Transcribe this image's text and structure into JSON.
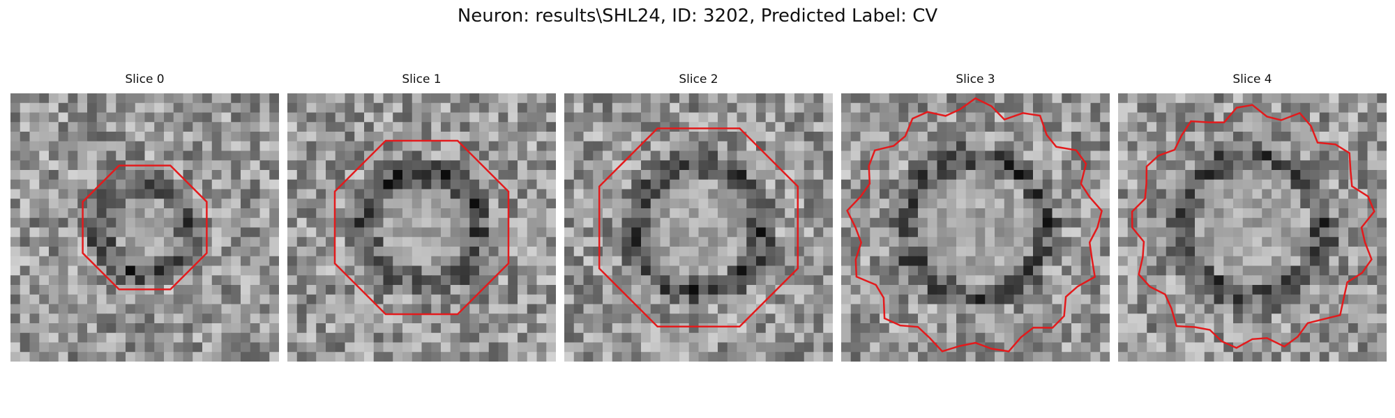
{
  "figure": {
    "title": "Neuron: results\\SHL24, ID: 3202, Predicted Label: CV"
  },
  "slices": [
    {
      "title": "Slice 0",
      "seed": 11,
      "ring_radius": 0.33,
      "contour_radius": 0.25,
      "contour_sides": 8,
      "jagged": false
    },
    {
      "title": "Slice 1",
      "seed": 23,
      "ring_radius": 0.43,
      "contour_radius": 0.35,
      "contour_sides": 8,
      "jagged": false
    },
    {
      "title": "Slice 2",
      "seed": 37,
      "ring_radius": 0.48,
      "contour_radius": 0.4,
      "contour_sides": 8,
      "jagged": false
    },
    {
      "title": "Slice 3",
      "seed": 53,
      "ring_radius": 0.52,
      "contour_radius": 0.47,
      "contour_sides": 12,
      "jagged": true
    },
    {
      "title": "Slice 4",
      "seed": 71,
      "ring_radius": 0.52,
      "contour_radius": 0.45,
      "contour_sides": 12,
      "jagged": true
    }
  ],
  "colors": {
    "contour": "#e31a1c",
    "colormap": "gray"
  }
}
